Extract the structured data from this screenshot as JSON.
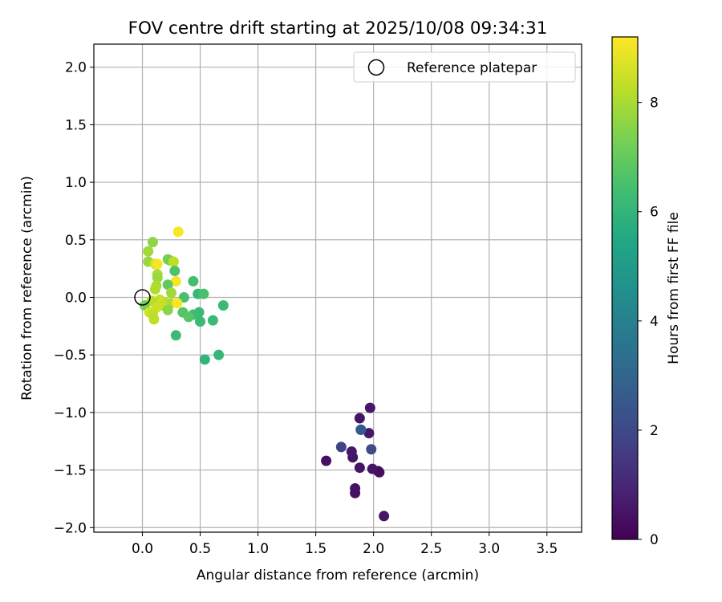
{
  "chart_data": {
    "type": "scatter",
    "title": "FOV centre drift starting at 2025/10/08 09:34:31",
    "xlabel": "Angular distance from reference (arcmin)",
    "ylabel": "Rotation from reference (arcmin)",
    "xlim": [
      -0.42,
      3.8
    ],
    "ylim": [
      -2.04,
      2.2
    ],
    "xticks": [
      0.0,
      0.5,
      1.0,
      1.5,
      2.0,
      2.5,
      3.0,
      3.5
    ],
    "xtick_labels": [
      "0.0",
      "0.5",
      "1.0",
      "1.5",
      "2.0",
      "2.5",
      "3.0",
      "3.5"
    ],
    "yticks": [
      2.0,
      1.5,
      1.0,
      0.5,
      0.0,
      -0.5,
      -1.0,
      -1.5,
      -2.0
    ],
    "ytick_labels": [
      "2.0",
      "1.5",
      "1.0",
      "0.5",
      "0.0",
      "−0.5",
      "−1.0",
      "−1.5",
      "−2.0"
    ],
    "grid": true,
    "legend": {
      "position": "top-right",
      "entries": [
        "Reference platepar"
      ]
    },
    "reference_point": {
      "x": 0.0,
      "y": 0.0
    },
    "colorbar": {
      "label": "Hours from first FF file",
      "range": [
        0,
        9.2
      ],
      "ticks": [
        0,
        2,
        4,
        6,
        8
      ],
      "tick_labels": [
        "0",
        "2",
        "4",
        "6",
        "8"
      ],
      "colormap": "viridis"
    },
    "points": [
      {
        "x": 2.09,
        "y": -1.9,
        "h": 0.6
      },
      {
        "x": 1.84,
        "y": -1.7,
        "h": 0.4
      },
      {
        "x": 1.84,
        "y": -1.66,
        "h": 0.5
      },
      {
        "x": 2.05,
        "y": -1.52,
        "h": 0.3
      },
      {
        "x": 2.04,
        "y": -1.51,
        "h": 0.3
      },
      {
        "x": 1.99,
        "y": -1.49,
        "h": 0.5
      },
      {
        "x": 1.88,
        "y": -1.48,
        "h": 0.5
      },
      {
        "x": 1.59,
        "y": -1.42,
        "h": 0.4
      },
      {
        "x": 1.82,
        "y": -1.39,
        "h": 0.5
      },
      {
        "x": 1.81,
        "y": -1.34,
        "h": 0.6
      },
      {
        "x": 1.72,
        "y": -1.3,
        "h": 1.8
      },
      {
        "x": 1.98,
        "y": -1.32,
        "h": 2.1
      },
      {
        "x": 1.96,
        "y": -1.18,
        "h": 0.6
      },
      {
        "x": 1.89,
        "y": -1.15,
        "h": 3.4
      },
      {
        "x": 1.89,
        "y": -1.15,
        "h": 2.6
      },
      {
        "x": 1.88,
        "y": -1.05,
        "h": 0.5
      },
      {
        "x": 1.97,
        "y": -0.96,
        "h": 0.6
      },
      {
        "x": 0.31,
        "y": 0.57,
        "h": 9.1
      },
      {
        "x": 0.09,
        "y": 0.48,
        "h": 7.6
      },
      {
        "x": 0.05,
        "y": 0.4,
        "h": 7.9
      },
      {
        "x": 0.22,
        "y": 0.33,
        "h": 7.3
      },
      {
        "x": 0.24,
        "y": 0.32,
        "h": 7.2
      },
      {
        "x": 0.27,
        "y": 0.31,
        "h": 8.3
      },
      {
        "x": 0.05,
        "y": 0.31,
        "h": 7.8
      },
      {
        "x": 0.11,
        "y": 0.29,
        "h": 8.6
      },
      {
        "x": 0.13,
        "y": 0.29,
        "h": 9.1
      },
      {
        "x": 0.28,
        "y": 0.23,
        "h": 6.6
      },
      {
        "x": 0.13,
        "y": 0.2,
        "h": 8.0
      },
      {
        "x": 0.13,
        "y": 0.17,
        "h": 7.8
      },
      {
        "x": 0.44,
        "y": 0.14,
        "h": 6.4
      },
      {
        "x": 0.29,
        "y": 0.14,
        "h": 9.1
      },
      {
        "x": 0.22,
        "y": 0.11,
        "h": 6.9
      },
      {
        "x": 0.12,
        "y": 0.1,
        "h": 8.0
      },
      {
        "x": 0.11,
        "y": 0.07,
        "h": 8.1
      },
      {
        "x": 0.25,
        "y": 0.04,
        "h": 7.9
      },
      {
        "x": 0.48,
        "y": 0.03,
        "h": 6.1
      },
      {
        "x": 0.53,
        "y": 0.03,
        "h": 6.5
      },
      {
        "x": 0.36,
        "y": 0.0,
        "h": 6.5
      },
      {
        "x": 0.15,
        "y": -0.02,
        "h": 8.4
      },
      {
        "x": 0.08,
        "y": -0.03,
        "h": 8.2
      },
      {
        "x": 0.18,
        "y": -0.04,
        "h": 8.6
      },
      {
        "x": 0.2,
        "y": -0.05,
        "h": 8.3
      },
      {
        "x": 0.25,
        "y": -0.05,
        "h": 8.0
      },
      {
        "x": 0.3,
        "y": -0.05,
        "h": 9.1
      },
      {
        "x": 0.7,
        "y": -0.07,
        "h": 6.2
      },
      {
        "x": 0.02,
        "y": -0.07,
        "h": 7.3
      },
      {
        "x": 0.17,
        "y": -0.07,
        "h": 8.4
      },
      {
        "x": 0.12,
        "y": -0.09,
        "h": 8.5
      },
      {
        "x": 0.22,
        "y": -0.11,
        "h": 7.6
      },
      {
        "x": 0.06,
        "y": -0.13,
        "h": 8.6
      },
      {
        "x": 0.35,
        "y": -0.13,
        "h": 6.7
      },
      {
        "x": 0.49,
        "y": -0.13,
        "h": 6.2
      },
      {
        "x": 0.09,
        "y": -0.15,
        "h": 8.3
      },
      {
        "x": 0.44,
        "y": -0.15,
        "h": 6.3
      },
      {
        "x": 0.4,
        "y": -0.17,
        "h": 6.8
      },
      {
        "x": 0.1,
        "y": -0.19,
        "h": 8.3
      },
      {
        "x": 0.61,
        "y": -0.2,
        "h": 6.2
      },
      {
        "x": 0.5,
        "y": -0.21,
        "h": 6.2
      },
      {
        "x": 0.29,
        "y": -0.33,
        "h": 6.2
      },
      {
        "x": 0.66,
        "y": -0.5,
        "h": 6.1
      },
      {
        "x": 0.54,
        "y": -0.54,
        "h": 6.0
      }
    ]
  }
}
